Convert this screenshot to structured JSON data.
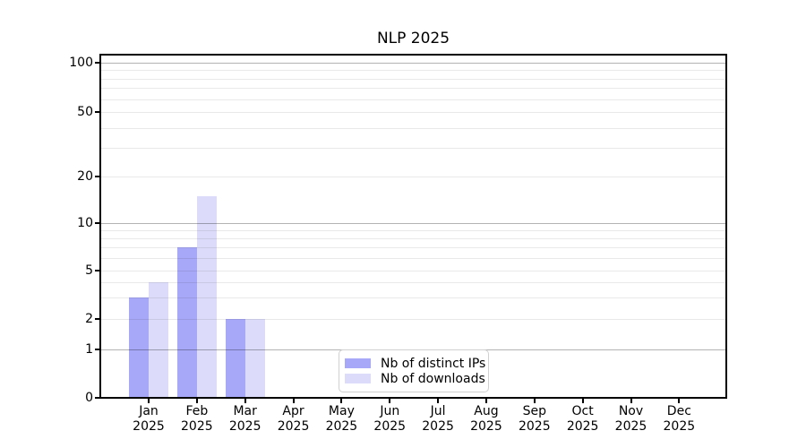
{
  "chart_data": {
    "type": "bar",
    "title": "NLP 2025",
    "x_tick_months": [
      "Jan",
      "Feb",
      "Mar",
      "Apr",
      "May",
      "Jun",
      "Jul",
      "Aug",
      "Sep",
      "Oct",
      "Nov",
      "Dec"
    ],
    "x_tick_year": "2025",
    "y_ticks": [
      0,
      1,
      2,
      5,
      10,
      20,
      50,
      100
    ],
    "y_scale": "symlog",
    "ylim": [
      0,
      110
    ],
    "grid": "horizontal major and minor",
    "series": [
      {
        "name": "Nb of distinct IPs",
        "color": "#a8a8f8",
        "values": [
          3,
          7,
          2,
          0,
          0,
          0,
          0,
          0,
          0,
          0,
          0,
          0
        ]
      },
      {
        "name": "Nb of downloads",
        "color": "#dcdcfa",
        "values": [
          4,
          15,
          2,
          0,
          0,
          0,
          0,
          0,
          0,
          0,
          0,
          0
        ]
      }
    ],
    "legend": {
      "position": "lower center inside plot"
    },
    "colors": {
      "axis": "#000000",
      "major_grid": "#b3b3b3",
      "minor_grid": "#e9e9e9",
      "background": "#ffffff"
    }
  }
}
